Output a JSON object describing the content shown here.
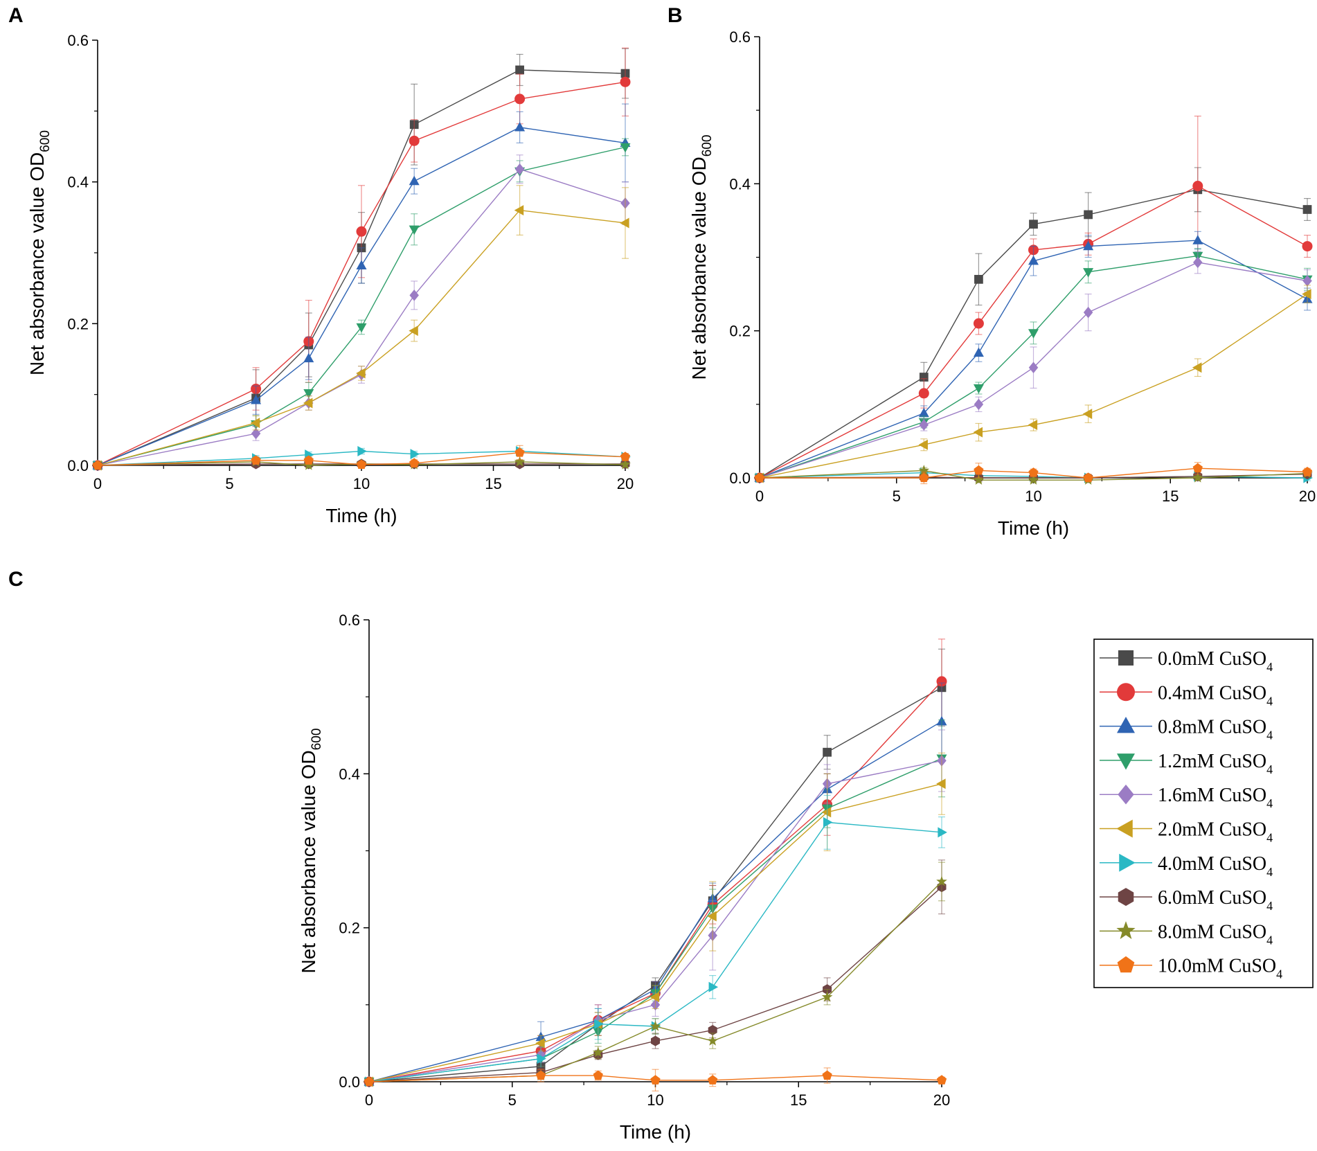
{
  "figure": {
    "legend": {
      "entries": [
        {
          "conc": "0.0mM",
          "compound": "CuSO",
          "sub": "4"
        },
        {
          "conc": "0.4mM",
          "compound": "CuSO",
          "sub": "4"
        },
        {
          "conc": "0.8mM",
          "compound": "CuSO",
          "sub": "4"
        },
        {
          "conc": "1.2mM",
          "compound": "CuSO",
          "sub": "4"
        },
        {
          "conc": "1.6mM",
          "compound": "CuSO",
          "sub": "4"
        },
        {
          "conc": "2.0mM",
          "compound": "CuSO",
          "sub": "4"
        },
        {
          "conc": "4.0mM",
          "compound": "CuSO",
          "sub": "4"
        },
        {
          "conc": "6.0mM",
          "compound": "CuSO",
          "sub": "4"
        },
        {
          "conc": "8.0mM",
          "compound": "CuSO",
          "sub": "4"
        },
        {
          "conc": "10.0mM",
          "compound": "CuSO",
          "sub": "4"
        }
      ]
    }
  },
  "chart_data": [
    {
      "panel": "A",
      "type": "line",
      "xlabel": "Time (h)",
      "ylabel": "Net absorbance value OD",
      "ylabel_sub": "600",
      "xlim": [
        0,
        20
      ],
      "ylim": [
        0,
        0.6
      ],
      "xticks": [
        0,
        5,
        10,
        15,
        20
      ],
      "yticks": [
        0.0,
        0.2,
        0.4,
        0.6
      ],
      "x": [
        0,
        6,
        8,
        10,
        12,
        16,
        20
      ],
      "series": [
        {
          "name": "0.0mM CuSO4",
          "color": "#4a4a4a",
          "marker": "square",
          "values": [
            0.0,
            0.095,
            0.17,
            0.307,
            0.481,
            0.558,
            0.553
          ],
          "err": [
            0.005,
            0.04,
            0.045,
            0.05,
            0.057,
            0.022,
            0.035
          ]
        },
        {
          "name": "0.4mM CuSO4",
          "color": "#e23a3a",
          "marker": "circle",
          "values": [
            0.0,
            0.108,
            0.175,
            0.33,
            0.458,
            0.517,
            0.541
          ],
          "err": [
            0.005,
            0.03,
            0.058,
            0.065,
            0.03,
            0.035,
            0.048
          ]
        },
        {
          "name": "0.8mM CuSO4",
          "color": "#2f64b3",
          "marker": "triangle-up",
          "values": [
            0.0,
            0.092,
            0.151,
            0.282,
            0.401,
            0.477,
            0.455
          ],
          "err": [
            0.005,
            0.02,
            0.03,
            0.025,
            0.018,
            0.022,
            0.055
          ]
        },
        {
          "name": "1.2mM CuSO4",
          "color": "#2e9e6a",
          "marker": "triangle-down",
          "values": [
            0.0,
            0.058,
            0.102,
            0.195,
            0.333,
            0.415,
            0.449
          ],
          "err": [
            0.004,
            0.012,
            0.015,
            0.01,
            0.022,
            0.015,
            0.012
          ]
        },
        {
          "name": "1.6mM CuSO4",
          "color": "#9b7cc4",
          "marker": "diamond",
          "values": [
            0.0,
            0.045,
            0.088,
            0.128,
            0.24,
            0.418,
            0.37
          ],
          "err": [
            0.004,
            0.01,
            0.01,
            0.012,
            0.02,
            0.02,
            0.03
          ]
        },
        {
          "name": "2.0mM CuSO4",
          "color": "#c9a021",
          "marker": "triangle-left",
          "values": [
            0.0,
            0.06,
            0.088,
            0.13,
            0.19,
            0.36,
            0.342
          ],
          "err": [
            0.004,
            0.01,
            0.01,
            0.01,
            0.015,
            0.035,
            0.05
          ]
        },
        {
          "name": "4.0mM CuSO4",
          "color": "#2ab8c4",
          "marker": "triangle-right",
          "values": [
            0.0,
            0.01,
            0.015,
            0.02,
            0.016,
            0.02,
            0.012
          ],
          "err": [
            0.003,
            0.004,
            0.004,
            0.004,
            0.004,
            0.004,
            0.004
          ]
        },
        {
          "name": "6.0mM CuSO4",
          "color": "#6e4444",
          "marker": "hexagon",
          "values": [
            0.0,
            0.002,
            0.002,
            0.002,
            0.002,
            0.002,
            0.002
          ],
          "err": [
            0.002,
            0.003,
            0.003,
            0.003,
            0.003,
            0.003,
            0.003
          ]
        },
        {
          "name": "8.0mM CuSO4",
          "color": "#858a2a",
          "marker": "star",
          "values": [
            0.0,
            0.005,
            0.0,
            0.002,
            0.001,
            0.005,
            0.001
          ],
          "err": [
            0.002,
            0.003,
            0.003,
            0.003,
            0.003,
            0.003,
            0.003
          ]
        },
        {
          "name": "10.0mM CuSO4",
          "color": "#f07318",
          "marker": "pentagon",
          "values": [
            0.0,
            0.007,
            0.007,
            0.001,
            0.003,
            0.018,
            0.012
          ],
          "err": [
            0.003,
            0.005,
            0.005,
            0.005,
            0.005,
            0.01,
            0.005
          ]
        }
      ]
    },
    {
      "panel": "B",
      "type": "line",
      "xlabel": "Time (h)",
      "ylabel": "Net absorbance value OD",
      "ylabel_sub": "600",
      "xlim": [
        0,
        20
      ],
      "ylim": [
        0,
        0.6
      ],
      "xticks": [
        0,
        5,
        10,
        15,
        20
      ],
      "yticks": [
        0.0,
        0.2,
        0.4,
        0.6
      ],
      "x": [
        0,
        6,
        8,
        10,
        12,
        16,
        20
      ],
      "series": [
        {
          "name": "0.0mM CuSO4",
          "color": "#4a4a4a",
          "marker": "square",
          "values": [
            0.0,
            0.137,
            0.27,
            0.345,
            0.358,
            0.392,
            0.365
          ],
          "err": [
            0.005,
            0.02,
            0.035,
            0.015,
            0.03,
            0.03,
            0.015
          ]
        },
        {
          "name": "0.4mM CuSO4",
          "color": "#e23a3a",
          "marker": "circle",
          "values": [
            0.0,
            0.115,
            0.21,
            0.31,
            0.318,
            0.397,
            0.315
          ],
          "err": [
            0.005,
            0.02,
            0.015,
            0.015,
            0.015,
            0.095,
            0.015
          ]
        },
        {
          "name": "0.8mM CuSO4",
          "color": "#2f64b3",
          "marker": "triangle-up",
          "values": [
            0.0,
            0.088,
            0.17,
            0.295,
            0.315,
            0.323,
            0.243
          ],
          "err": [
            0.004,
            0.01,
            0.012,
            0.02,
            0.015,
            0.012,
            0.015
          ]
        },
        {
          "name": "1.2mM CuSO4",
          "color": "#2e9e6a",
          "marker": "triangle-down",
          "values": [
            0.0,
            0.076,
            0.122,
            0.197,
            0.28,
            0.302,
            0.27
          ],
          "err": [
            0.004,
            0.008,
            0.008,
            0.015,
            0.015,
            0.01,
            0.015
          ]
        },
        {
          "name": "1.6mM CuSO4",
          "color": "#9b7cc4",
          "marker": "diamond",
          "values": [
            0.0,
            0.072,
            0.1,
            0.15,
            0.225,
            0.293,
            0.268
          ],
          "err": [
            0.004,
            0.008,
            0.01,
            0.028,
            0.025,
            0.015,
            0.015
          ]
        },
        {
          "name": "2.0mM CuSO4",
          "color": "#c9a021",
          "marker": "triangle-left",
          "values": [
            0.0,
            0.045,
            0.062,
            0.072,
            0.087,
            0.15,
            0.25
          ],
          "err": [
            0.004,
            0.008,
            0.012,
            0.008,
            0.012,
            0.012,
            0.012
          ]
        },
        {
          "name": "4.0mM CuSO4",
          "color": "#2ab8c4",
          "marker": "triangle-right",
          "values": [
            0.0,
            0.007,
            0.003,
            0.002,
            0.0,
            0.002,
            0.0
          ],
          "err": [
            0.003,
            0.004,
            0.004,
            0.004,
            0.004,
            0.004,
            0.004
          ]
        },
        {
          "name": "6.0mM CuSO4",
          "color": "#6e4444",
          "marker": "hexagon",
          "values": [
            0.0,
            0.001,
            0.0,
            0.0,
            0.0,
            0.002,
            0.005
          ],
          "err": [
            0.002,
            0.003,
            0.003,
            0.003,
            0.003,
            0.003,
            0.003
          ]
        },
        {
          "name": "8.0mM CuSO4",
          "color": "#858a2a",
          "marker": "star",
          "values": [
            0.0,
            0.01,
            -0.003,
            -0.003,
            -0.003,
            0.0,
            0.006
          ],
          "err": [
            0.002,
            0.004,
            0.003,
            0.003,
            0.003,
            0.003,
            0.003
          ]
        },
        {
          "name": "10.0mM CuSO4",
          "color": "#f07318",
          "marker": "pentagon",
          "values": [
            0.0,
            0.0,
            0.01,
            0.007,
            0.0,
            0.013,
            0.008
          ],
          "err": [
            0.003,
            0.008,
            0.01,
            0.005,
            0.005,
            0.008,
            0.005
          ]
        }
      ]
    },
    {
      "panel": "C",
      "type": "line",
      "xlabel": "Time (h)",
      "ylabel": "Net absorbance value OD",
      "ylabel_sub": "600",
      "xlim": [
        0,
        20
      ],
      "ylim": [
        0,
        0.6
      ],
      "xticks": [
        0,
        5,
        10,
        15,
        20
      ],
      "yticks": [
        0.0,
        0.2,
        0.4,
        0.6
      ],
      "x": [
        0,
        6,
        8,
        10,
        12,
        16,
        20
      ],
      "series": [
        {
          "name": "0.0mM CuSO4",
          "color": "#4a4a4a",
          "marker": "square",
          "values": [
            0.0,
            0.02,
            0.075,
            0.125,
            0.235,
            0.428,
            0.512
          ],
          "err": [
            0.005,
            0.01,
            0.015,
            0.01,
            0.02,
            0.022,
            0.05
          ]
        },
        {
          "name": "0.4mM CuSO4",
          "color": "#e23a3a",
          "marker": "circle",
          "values": [
            0.0,
            0.04,
            0.08,
            0.115,
            0.23,
            0.36,
            0.52
          ],
          "err": [
            0.005,
            0.02,
            0.02,
            0.015,
            0.025,
            0.04,
            0.055
          ]
        },
        {
          "name": "0.8mM CuSO4",
          "color": "#2f64b3",
          "marker": "triangle-up",
          "values": [
            0.0,
            0.058,
            0.08,
            0.12,
            0.238,
            0.38,
            0.468
          ],
          "err": [
            0.004,
            0.02,
            0.015,
            0.01,
            0.02,
            0.02,
            0.05
          ]
        },
        {
          "name": "1.2mM CuSO4",
          "color": "#2e9e6a",
          "marker": "triangle-down",
          "values": [
            0.0,
            0.03,
            0.065,
            0.115,
            0.225,
            0.355,
            0.42
          ],
          "err": [
            0.004,
            0.01,
            0.015,
            0.01,
            0.025,
            0.025,
            0.05
          ]
        },
        {
          "name": "1.6mM CuSO4",
          "color": "#9b7cc4",
          "marker": "diamond",
          "values": [
            0.0,
            0.035,
            0.08,
            0.1,
            0.19,
            0.387,
            0.417
          ],
          "err": [
            0.004,
            0.01,
            0.02,
            0.015,
            0.045,
            0.025,
            0.04
          ]
        },
        {
          "name": "2.0mM CuSO4",
          "color": "#c9a021",
          "marker": "triangle-left",
          "values": [
            0.0,
            0.05,
            0.075,
            0.11,
            0.215,
            0.35,
            0.387
          ],
          "err": [
            0.004,
            0.01,
            0.015,
            0.015,
            0.045,
            0.05,
            0.04
          ]
        },
        {
          "name": "4.0mM CuSO4",
          "color": "#2ab8c4",
          "marker": "triangle-right",
          "values": [
            0.0,
            0.03,
            0.075,
            0.072,
            0.123,
            0.337,
            0.324
          ],
          "err": [
            0.004,
            0.015,
            0.02,
            0.01,
            0.015,
            0.035,
            0.02
          ]
        },
        {
          "name": "6.0mM CuSO4",
          "color": "#6e4444",
          "marker": "hexagon",
          "values": [
            0.0,
            0.012,
            0.035,
            0.053,
            0.067,
            0.12,
            0.253
          ],
          "err": [
            0.004,
            0.005,
            0.006,
            0.01,
            0.01,
            0.015,
            0.035
          ]
        },
        {
          "name": "8.0mM CuSO4",
          "color": "#858a2a",
          "marker": "star",
          "values": [
            0.0,
            0.008,
            0.038,
            0.072,
            0.053,
            0.11,
            0.26
          ],
          "err": [
            0.004,
            0.005,
            0.008,
            0.01,
            0.01,
            0.01,
            0.025
          ]
        },
        {
          "name": "10.0mM CuSO4",
          "color": "#f07318",
          "marker": "pentagon",
          "values": [
            0.0,
            0.008,
            0.008,
            0.002,
            0.002,
            0.008,
            0.002
          ],
          "err": [
            0.004,
            0.008,
            0.006,
            0.014,
            0.008,
            0.01,
            0.004
          ]
        }
      ]
    }
  ]
}
